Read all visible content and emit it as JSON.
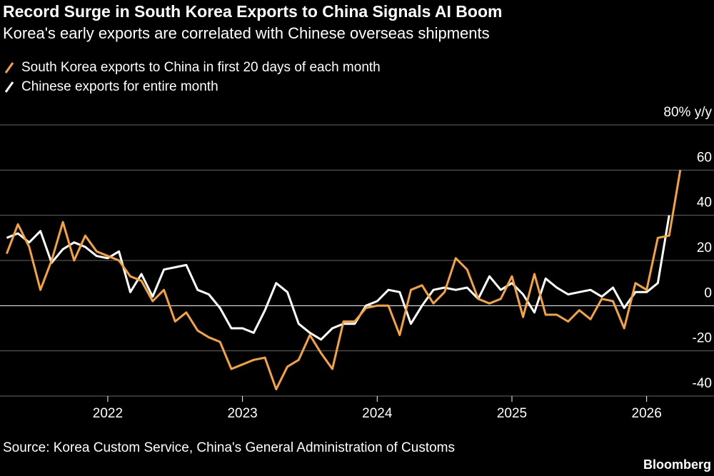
{
  "chart_data": {
    "type": "line",
    "title": "Record Surge in South Korea Exports to China Signals AI Boom",
    "subtitle": "Korea's early exports are correlated with Chinese overseas shipments",
    "source": "Source: Korea Custom Service, China's General Administration of Customs",
    "brand": "Bloomberg",
    "x": [
      2021.25,
      2021.333,
      2021.417,
      2021.5,
      2021.583,
      2021.667,
      2021.75,
      2021.833,
      2021.917,
      2022,
      2022.083,
      2022.167,
      2022.25,
      2022.333,
      2022.417,
      2022.5,
      2022.583,
      2022.667,
      2022.75,
      2022.833,
      2022.917,
      2023,
      2023.083,
      2023.167,
      2023.25,
      2023.333,
      2023.417,
      2023.5,
      2023.583,
      2023.667,
      2023.75,
      2023.833,
      2023.917,
      2024,
      2024.083,
      2024.167,
      2024.25,
      2024.333,
      2024.417,
      2024.5,
      2024.583,
      2024.667,
      2024.75,
      2024.833,
      2024.917,
      2025,
      2025.083,
      2025.167,
      2025.25,
      2025.333,
      2025.417,
      2025.5,
      2025.583,
      2025.667,
      2025.75,
      2025.833,
      2025.917,
      2026,
      2026.083,
      2026.167,
      2026.25
    ],
    "series": [
      {
        "name": "South Korea exports to China in first 20 days of each month",
        "color": "#f7a33b",
        "values": [
          23,
          36,
          26,
          7,
          20,
          37,
          20,
          31,
          24,
          22,
          20,
          13,
          11,
          2,
          7,
          -7,
          -3,
          -11,
          -14,
          -16,
          -28,
          -26,
          -24,
          -23,
          -37,
          -27,
          -24,
          -13,
          -21,
          -28,
          -7,
          -7,
          -1,
          0,
          0,
          -13,
          7,
          9,
          1,
          6,
          21,
          16,
          3,
          1,
          3,
          13,
          -5,
          14,
          -4,
          -4,
          -7,
          -2,
          -6,
          3,
          2,
          -10,
          10,
          7,
          30,
          31,
          60
        ]
      },
      {
        "name": "Chinese exports for entire month",
        "color": "#ffffff",
        "values": [
          30,
          32,
          28,
          33,
          19,
          25,
          28,
          26,
          22,
          21,
          24,
          6,
          14,
          4,
          16,
          17,
          18,
          7,
          5,
          -1,
          -10,
          -10,
          -12,
          -2,
          10,
          6,
          -8,
          -12,
          -15,
          -10,
          -8,
          -8,
          0,
          2,
          7,
          6,
          -8,
          0,
          7,
          8,
          7,
          8,
          3,
          13,
          7,
          10,
          5,
          -3,
          12,
          8,
          5,
          6,
          7,
          4,
          8,
          -1,
          6,
          6,
          10,
          40,
          null
        ]
      }
    ],
    "xlim": [
      2021.2,
      2026.5
    ],
    "xticks": [
      2022,
      2023,
      2024,
      2025,
      2026
    ],
    "ylim": [
      -40,
      80
    ],
    "yticks": [
      -40,
      -20,
      0,
      20,
      40,
      60,
      {
        "value": 80,
        "label": "80% y/y"
      }
    ],
    "grid": true
  }
}
